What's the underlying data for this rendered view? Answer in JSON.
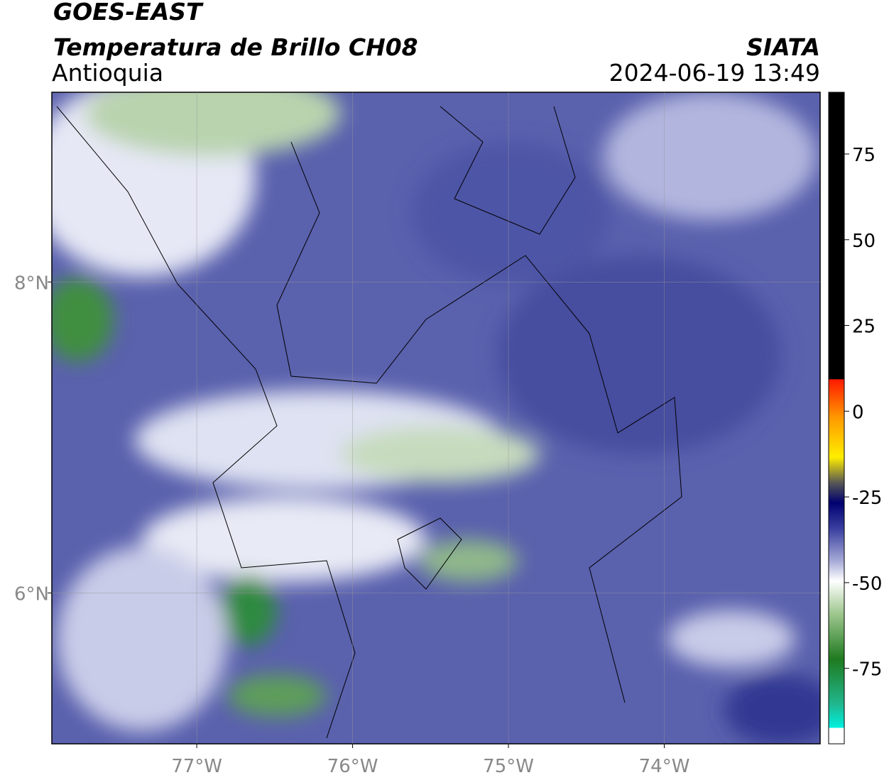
{
  "header": {
    "title": "GOES-EAST",
    "subtitle": "Temperatura de Brillo CH08",
    "region": "Antioquia",
    "source": "SIATA",
    "datetime": "2024-06-19 13:49"
  },
  "map": {
    "xlim": [
      -77.93,
      -73.0
    ],
    "ylim": [
      5.03,
      9.22
    ],
    "xticks": [
      {
        "value": -77,
        "label": "77°W"
      },
      {
        "value": -76,
        "label": "76°W"
      },
      {
        "value": -75,
        "label": "75°W"
      },
      {
        "value": -74,
        "label": "74°W"
      }
    ],
    "yticks": [
      {
        "value": 8,
        "label": "8°N"
      },
      {
        "value": 6,
        "label": "6°N"
      }
    ],
    "grid": true
  },
  "colorbar": {
    "lim": [
      -97,
      93
    ],
    "ticks": [
      75,
      50,
      25,
      0,
      -25,
      -50,
      -75
    ]
  }
}
